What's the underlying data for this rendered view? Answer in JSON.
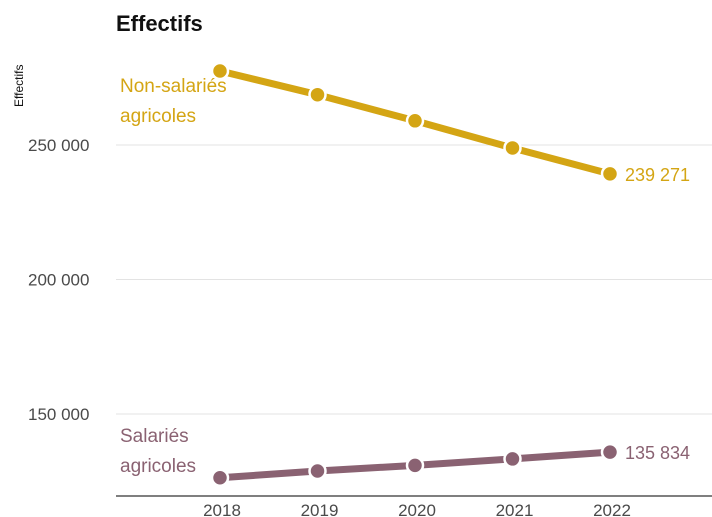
{
  "chart_data": {
    "type": "line",
    "title": "Effectifs",
    "ylabel": "Effectifs",
    "xlabel": "",
    "x": [
      "2018",
      "2019",
      "2020",
      "2021",
      "2022"
    ],
    "yticks": [
      {
        "value": 150000,
        "label": "150 000"
      },
      {
        "value": 200000,
        "label": "200 000"
      },
      {
        "value": 250000,
        "label": "250 000"
      }
    ],
    "grid": true,
    "legend": "inline",
    "series": [
      {
        "name_lines": [
          "Non-salariés",
          "agricoles"
        ],
        "color": "#d4a514",
        "values": [
          277500,
          268700,
          259000,
          248900,
          239271
        ],
        "end_label": "239 271"
      },
      {
        "name_lines": [
          "Salariés",
          "agricoles"
        ],
        "color": "#8a6272",
        "values": [
          126300,
          128800,
          130900,
          133300,
          135834
        ],
        "end_label": "135 834"
      }
    ]
  }
}
